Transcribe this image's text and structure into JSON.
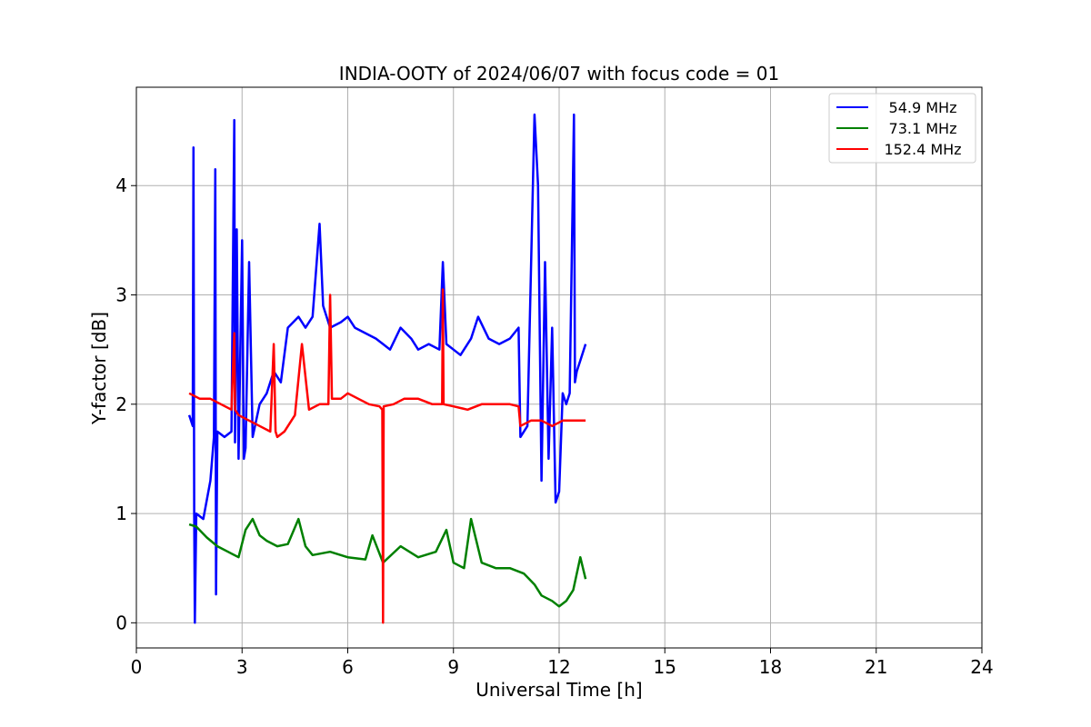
{
  "chart_data": {
    "type": "line",
    "title": "INDIA-OOTY of 2024/06/07 with focus code = 01",
    "xlabel": "Universal Time [h]",
    "ylabel": "Y-factor [dB]",
    "xlim": [
      0,
      24
    ],
    "ylim": [
      -0.23,
      4.9
    ],
    "xticks": [
      0,
      3,
      6,
      9,
      12,
      15,
      18,
      21,
      24
    ],
    "xtick_labels": [
      "0",
      "3",
      "6",
      "9",
      "12",
      "15",
      "18",
      "21",
      "24"
    ],
    "yticks": [
      0,
      1,
      2,
      3,
      4
    ],
    "ytick_labels": [
      "0",
      "1",
      "2",
      "3",
      "4"
    ],
    "grid": true,
    "legend_position": "top-right",
    "series": [
      {
        "name": "54.9 MHz",
        "color": "#0000ff",
        "x": [
          1.5,
          1.6,
          1.62,
          1.64,
          1.66,
          1.7,
          1.9,
          2.1,
          2.2,
          2.24,
          2.26,
          2.3,
          2.5,
          2.7,
          2.78,
          2.8,
          2.85,
          2.9,
          3.0,
          3.05,
          3.1,
          3.2,
          3.3,
          3.5,
          3.7,
          3.9,
          4.1,
          4.3,
          4.6,
          4.8,
          5.0,
          5.2,
          5.3,
          5.5,
          5.8,
          6.0,
          6.2,
          6.5,
          6.8,
          7.0,
          7.2,
          7.5,
          7.8,
          8.0,
          8.3,
          8.6,
          8.7,
          8.8,
          9.0,
          9.2,
          9.5,
          9.7,
          10.0,
          10.3,
          10.6,
          10.85,
          10.9,
          11.1,
          11.3,
          11.4,
          11.5,
          11.6,
          11.7,
          11.8,
          11.9,
          12.0,
          12.1,
          12.2,
          12.3,
          12.42,
          12.45,
          12.5,
          12.6,
          12.75
        ],
        "y": [
          1.9,
          1.8,
          4.35,
          1.0,
          0.0,
          1.0,
          0.95,
          1.3,
          1.7,
          4.15,
          0.26,
          1.75,
          1.7,
          1.75,
          4.6,
          1.65,
          3.6,
          1.5,
          3.5,
          1.5,
          1.6,
          3.3,
          1.7,
          2.0,
          2.1,
          2.3,
          2.2,
          2.7,
          2.8,
          2.7,
          2.8,
          3.65,
          2.9,
          2.7,
          2.75,
          2.8,
          2.7,
          2.65,
          2.6,
          2.55,
          2.5,
          2.7,
          2.6,
          2.5,
          2.55,
          2.5,
          3.3,
          2.55,
          2.5,
          2.45,
          2.6,
          2.8,
          2.6,
          2.55,
          2.6,
          2.7,
          1.7,
          1.8,
          4.65,
          4.0,
          1.3,
          3.3,
          1.5,
          2.7,
          1.1,
          1.2,
          2.1,
          2.0,
          2.1,
          4.65,
          2.2,
          2.3,
          2.4,
          2.55
        ]
      },
      {
        "name": "73.1 MHz",
        "color": "#008000",
        "x": [
          1.5,
          1.7,
          2.0,
          2.3,
          2.6,
          2.9,
          3.1,
          3.3,
          3.5,
          3.7,
          4.0,
          4.3,
          4.6,
          4.8,
          5.0,
          5.5,
          6.0,
          6.5,
          6.7,
          7.0,
          7.5,
          8.0,
          8.5,
          8.8,
          9.0,
          9.3,
          9.5,
          9.8,
          10.2,
          10.6,
          11.0,
          11.3,
          11.5,
          11.8,
          12.0,
          12.2,
          12.4,
          12.6,
          12.75
        ],
        "y": [
          0.9,
          0.88,
          0.78,
          0.7,
          0.65,
          0.6,
          0.85,
          0.95,
          0.8,
          0.75,
          0.7,
          0.72,
          0.95,
          0.7,
          0.62,
          0.65,
          0.6,
          0.58,
          0.8,
          0.55,
          0.7,
          0.6,
          0.65,
          0.85,
          0.55,
          0.5,
          0.95,
          0.55,
          0.5,
          0.5,
          0.45,
          0.35,
          0.25,
          0.2,
          0.15,
          0.2,
          0.3,
          0.6,
          0.4
        ]
      },
      {
        "name": "152.4 MHz",
        "color": "#ff0000",
        "x": [
          1.5,
          1.8,
          2.1,
          2.4,
          2.7,
          2.78,
          2.8,
          2.9,
          3.2,
          3.5,
          3.8,
          3.9,
          3.95,
          4.0,
          4.2,
          4.5,
          4.7,
          4.9,
          5.2,
          5.45,
          5.5,
          5.55,
          5.8,
          6.0,
          6.3,
          6.6,
          6.9,
          6.98,
          7.0,
          7.02,
          7.3,
          7.6,
          8.0,
          8.4,
          8.68,
          8.7,
          8.72,
          9.0,
          9.4,
          9.8,
          10.2,
          10.6,
          10.85,
          10.9,
          11.2,
          11.5,
          11.8,
          12.1,
          12.4,
          12.75
        ],
        "y": [
          2.1,
          2.05,
          2.05,
          2.0,
          1.95,
          2.65,
          1.95,
          1.9,
          1.85,
          1.8,
          1.75,
          2.55,
          1.75,
          1.7,
          1.75,
          1.9,
          2.55,
          1.95,
          2.0,
          2.0,
          3.0,
          2.05,
          2.05,
          2.1,
          2.05,
          2.0,
          1.98,
          1.95,
          0.0,
          1.98,
          2.0,
          2.05,
          2.05,
          2.0,
          2.0,
          3.05,
          2.0,
          1.98,
          1.95,
          2.0,
          2.0,
          2.0,
          1.98,
          1.8,
          1.85,
          1.85,
          1.8,
          1.85,
          1.85,
          1.85
        ]
      }
    ]
  }
}
